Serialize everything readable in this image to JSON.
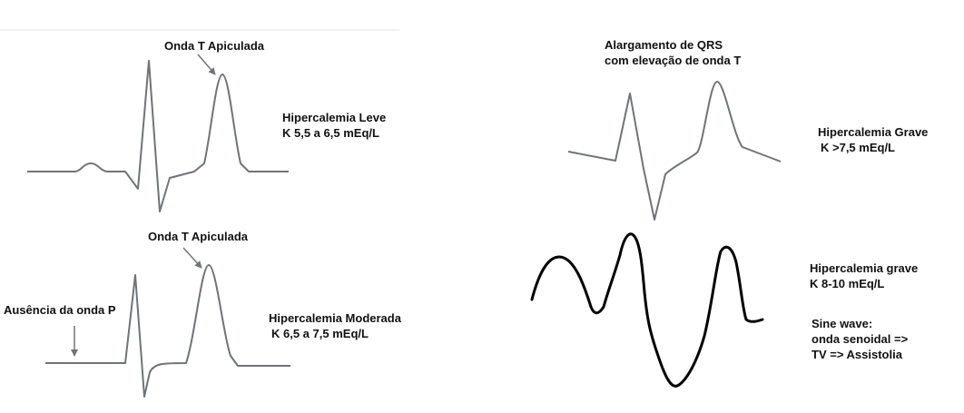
{
  "panels": [
    {
      "annotation": "Onda T Apiculada",
      "title": "Hipercalemia Leve",
      "range": "K 5,5 a 6,5 mEq/L"
    },
    {
      "annotation": "Onda T Apiculada",
      "annotation_left": "Ausência da onda P",
      "title": "Hipercalemia Moderada",
      "range": "K 6,5 a 7,5 mEq/L"
    },
    {
      "annotation_line1": "Alargamento de QRS",
      "annotation_line2": "com elevação de onda T",
      "title": "Hipercalemia Grave",
      "range": "K >7,5 mEq/L"
    },
    {
      "title": "Hipercalemia grave",
      "range": "K 8-10 mEq/L",
      "note_line1": "Sine wave:",
      "note_line2": "onda senoidal =>",
      "note_line3": "TV => Assistolia"
    }
  ],
  "colors": {
    "trace": "#6f7477",
    "sine_trace": "#000000",
    "text": "#111111",
    "top_rule": "#f2f2f2"
  }
}
